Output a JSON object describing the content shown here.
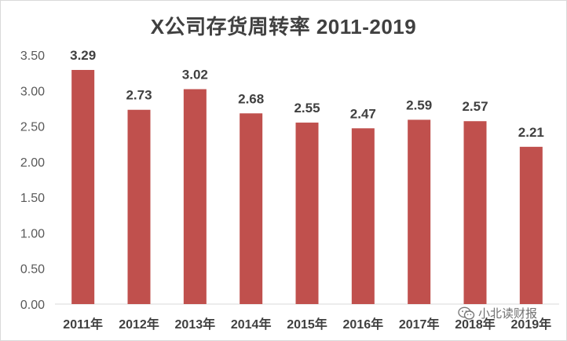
{
  "chart_data": {
    "type": "bar",
    "title": "X公司存货周转率 2011-2019",
    "categories": [
      "2011年",
      "2012年",
      "2013年",
      "2014年",
      "2015年",
      "2016年",
      "2017年",
      "2018年",
      "2019年"
    ],
    "values": [
      3.29,
      2.73,
      3.02,
      2.68,
      2.55,
      2.47,
      2.59,
      2.57,
      2.21
    ],
    "data_labels": [
      "3.29",
      "2.73",
      "3.02",
      "2.68",
      "2.55",
      "2.47",
      "2.59",
      "2.57",
      "2.21"
    ],
    "yticks": [
      "0.00",
      "0.50",
      "1.00",
      "1.50",
      "2.00",
      "2.50",
      "3.00",
      "3.50"
    ],
    "ylim": [
      0,
      3.5
    ],
    "grid": false,
    "bar_color": "#c0504d"
  },
  "watermark": {
    "icon": "wechat-icon",
    "text": "小北读财报"
  }
}
